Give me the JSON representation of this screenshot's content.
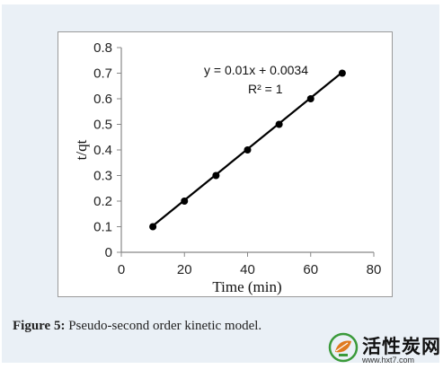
{
  "figure": {
    "caption_label": "Figure 5:",
    "caption_text": " Pseudo-second order kinetic model."
  },
  "watermark": {
    "brand": "活性炭网",
    "url": "www.hxt7.com"
  },
  "chart_data": {
    "type": "scatter",
    "xlabel": "Time (min)",
    "ylabel": "t/qt",
    "xlim": [
      0,
      80
    ],
    "ylim": [
      0,
      0.8
    ],
    "x_ticks": [
      "0",
      "20",
      "40",
      "60",
      "80"
    ],
    "y_ticks": [
      "0",
      "0.1",
      "0.2",
      "0.3",
      "0.4",
      "0.5",
      "0.6",
      "0.7",
      "0.8"
    ],
    "grid": false,
    "series": [
      {
        "x": [
          10,
          20,
          30,
          40,
          50,
          60,
          70
        ],
        "y": [
          0.1,
          0.2,
          0.3,
          0.4,
          0.5,
          0.6,
          0.7
        ],
        "color": "#000000"
      }
    ],
    "trendline": {
      "slope": 0.01,
      "intercept": 0.0034,
      "x_range": [
        10,
        70
      ]
    },
    "annotations": {
      "equation": "y = 0.01x + 0.0034",
      "r_squared": "R² = 1"
    }
  }
}
